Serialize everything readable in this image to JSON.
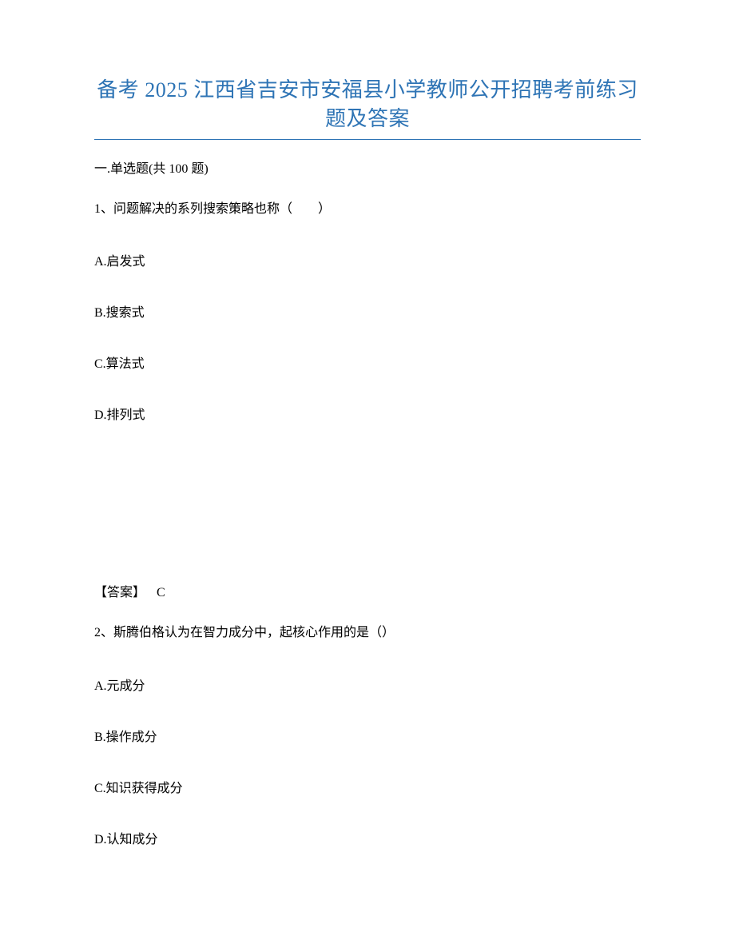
{
  "title_color": "#2e74b5",
  "title_line1": "备考 2025 江西省吉安市安福县小学教师公开招聘考前练习",
  "title_line2": "题及答案",
  "section_header": "一.单选题(共 100 题)",
  "q1": {
    "stem": "1、问题解决的系列搜索策略也称（　　）",
    "options": {
      "A": "A.启发式",
      "B": "B.搜索式",
      "C": "C.算法式",
      "D": "D.排列式"
    },
    "answer_label": "【答案】",
    "answer_value": "C"
  },
  "q2": {
    "stem": "2、斯腾伯格认为在智力成分中，起核心作用的是（）",
    "options": {
      "A": "A.元成分",
      "B": "B.操作成分",
      "C": "C.知识获得成分",
      "D": "D.认知成分"
    }
  }
}
